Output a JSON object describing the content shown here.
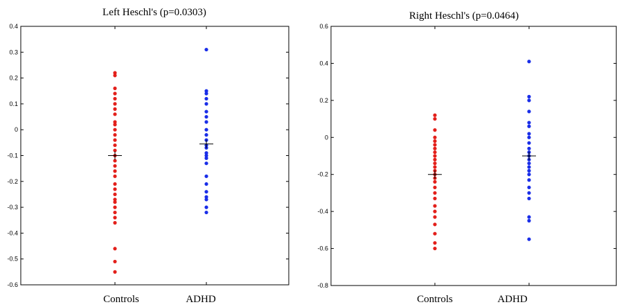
{
  "chart_data": [
    {
      "type": "scatter",
      "title": "Left Heschl's (p=0.0303)",
      "xlabel": "",
      "ylabel": "",
      "categories": [
        "Controls",
        "ADHD"
      ],
      "ylim": [
        -0.6,
        0.4
      ],
      "yticks": [
        "0.4",
        "0.3",
        "0.2",
        "0.1",
        "0",
        "-0.1",
        "-0.2",
        "-0.3",
        "-0.4",
        "-0.5",
        "-0.6"
      ],
      "grid": false,
      "series": [
        {
          "category": "Controls",
          "color": "#e3201b",
          "mean": -0.1,
          "values": [
            0.22,
            0.21,
            0.16,
            0.14,
            0.12,
            0.1,
            0.08,
            0.06,
            0.03,
            0.02,
            0.0,
            -0.02,
            -0.04,
            -0.06,
            -0.08,
            -0.1,
            -0.12,
            -0.14,
            -0.16,
            -0.18,
            -0.21,
            -0.23,
            -0.25,
            -0.27,
            -0.28,
            -0.3,
            -0.32,
            -0.34,
            -0.36,
            -0.46,
            -0.51,
            -0.55
          ]
        },
        {
          "category": "ADHD",
          "color": "#1a2ee8",
          "mean": -0.055,
          "values": [
            0.31,
            0.15,
            0.14,
            0.12,
            0.1,
            0.07,
            0.05,
            0.03,
            0.0,
            -0.02,
            -0.04,
            -0.06,
            -0.07,
            -0.09,
            -0.1,
            -0.11,
            -0.13,
            -0.18,
            -0.21,
            -0.24,
            -0.26,
            -0.27,
            -0.3,
            -0.32
          ]
        }
      ]
    },
    {
      "type": "scatter",
      "title": "Right Heschl's (p=0.0464)",
      "xlabel": "",
      "ylabel": "",
      "categories": [
        "Controls",
        "ADHD"
      ],
      "ylim": [
        -0.8,
        0.6
      ],
      "yticks": [
        "0.6",
        "0.4",
        "0.2",
        "0",
        "-0.2",
        "-0.4",
        "-0.6",
        "-0.8"
      ],
      "grid": false,
      "series": [
        {
          "category": "Controls",
          "color": "#e3201b",
          "mean": -0.2,
          "values": [
            0.12,
            0.1,
            0.04,
            0.0,
            -0.02,
            -0.04,
            -0.06,
            -0.08,
            -0.1,
            -0.12,
            -0.14,
            -0.16,
            -0.18,
            -0.2,
            -0.22,
            -0.24,
            -0.27,
            -0.3,
            -0.33,
            -0.37,
            -0.4,
            -0.43,
            -0.47,
            -0.52,
            -0.57,
            -0.6
          ]
        },
        {
          "category": "ADHD",
          "color": "#1a2ee8",
          "mean": -0.1,
          "values": [
            0.41,
            0.22,
            0.2,
            0.14,
            0.08,
            0.06,
            0.02,
            0.0,
            -0.03,
            -0.06,
            -0.08,
            -0.1,
            -0.12,
            -0.14,
            -0.16,
            -0.18,
            -0.2,
            -0.23,
            -0.27,
            -0.3,
            -0.33,
            -0.43,
            -0.45,
            -0.55
          ]
        }
      ]
    }
  ]
}
